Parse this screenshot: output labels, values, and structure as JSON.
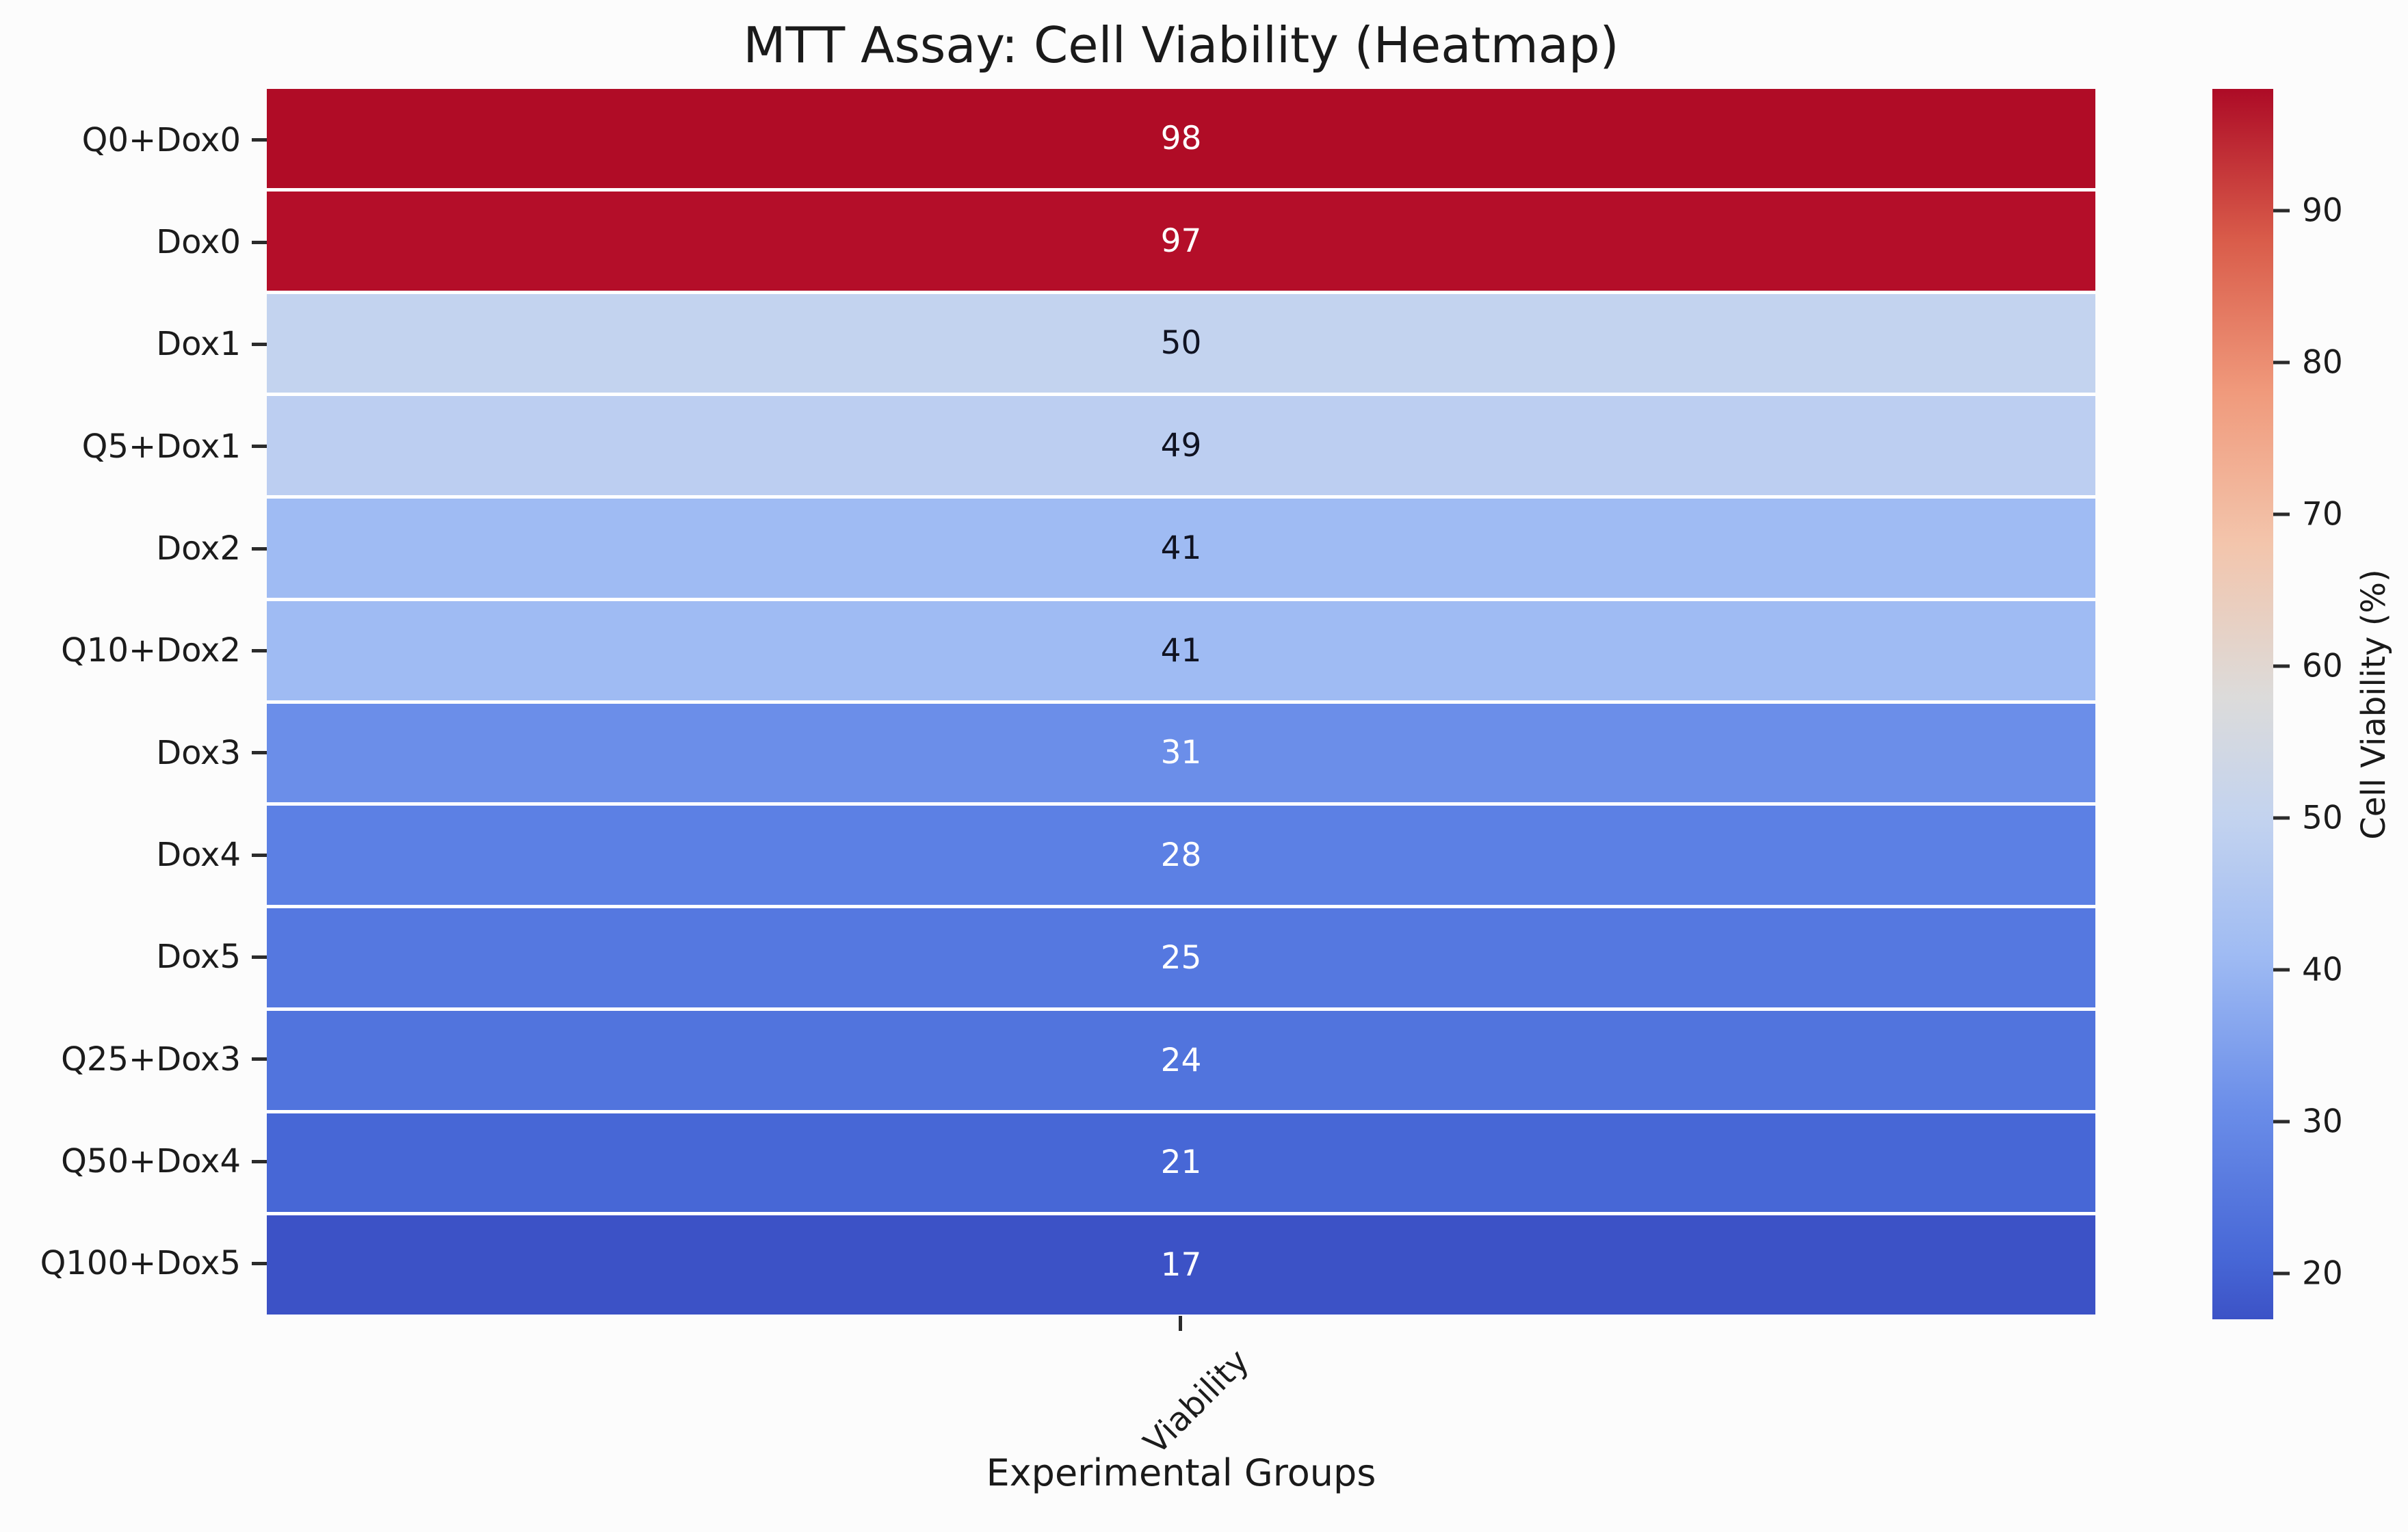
{
  "figure": {
    "background": "#fcfcfc"
  },
  "chart_data": {
    "type": "heatmap",
    "title": "MTT Assay: Cell Viability (Heatmap)",
    "xlabel": "Experimental Groups",
    "x_tick_labels": [
      "Viability"
    ],
    "colorbar_label": "Cell Viability (%)",
    "colorbar_position": "right",
    "grid": false,
    "annotations_shown": true,
    "vmin": 17,
    "vmax": 98,
    "categories": [
      "Q0+Dox0",
      "Dox0",
      "Dox1",
      "Q5+Dox1",
      "Dox2",
      "Q10+Dox2",
      "Dox3",
      "Dox4",
      "Dox5",
      "Q25+Dox3",
      "Q50+Dox4",
      "Q100+Dox5"
    ],
    "values": [
      98,
      97,
      50,
      49,
      41,
      41,
      31,
      28,
      25,
      24,
      21,
      17
    ],
    "cell_colors": [
      "#b00c26",
      "#b40e29",
      "#c3d3ef",
      "#bccef1",
      "#9fbbf3",
      "#9fbbf3",
      "#6b8ee9",
      "#5c80e4",
      "#5578e0",
      "#5174dd",
      "#4767d6",
      "#3c52c6"
    ],
    "value_text_colors": [
      "#ffffff",
      "#ffffff",
      "#101322",
      "#101322",
      "#101322",
      "#101322",
      "#ffffff",
      "#ffffff",
      "#ffffff",
      "#ffffff",
      "#ffffff",
      "#ffffff"
    ],
    "colorbar_ticks": [
      90,
      80,
      70,
      60,
      50,
      40,
      30,
      20
    ],
    "colorbar_gradient": [
      {
        "pos": 0,
        "color": "#ad0b26"
      },
      {
        "pos": 12.3,
        "color": "#d95c4a"
      },
      {
        "pos": 24.7,
        "color": "#f09a7c"
      },
      {
        "pos": 37.0,
        "color": "#f3c5ac"
      },
      {
        "pos": 49.4,
        "color": "#dcdbda"
      },
      {
        "pos": 59.3,
        "color": "#c3d3ef"
      },
      {
        "pos": 70.4,
        "color": "#9fbbf3"
      },
      {
        "pos": 82.7,
        "color": "#6b8ee9"
      },
      {
        "pos": 95.1,
        "color": "#4767d6"
      },
      {
        "pos": 100,
        "color": "#3c52c6"
      }
    ]
  }
}
